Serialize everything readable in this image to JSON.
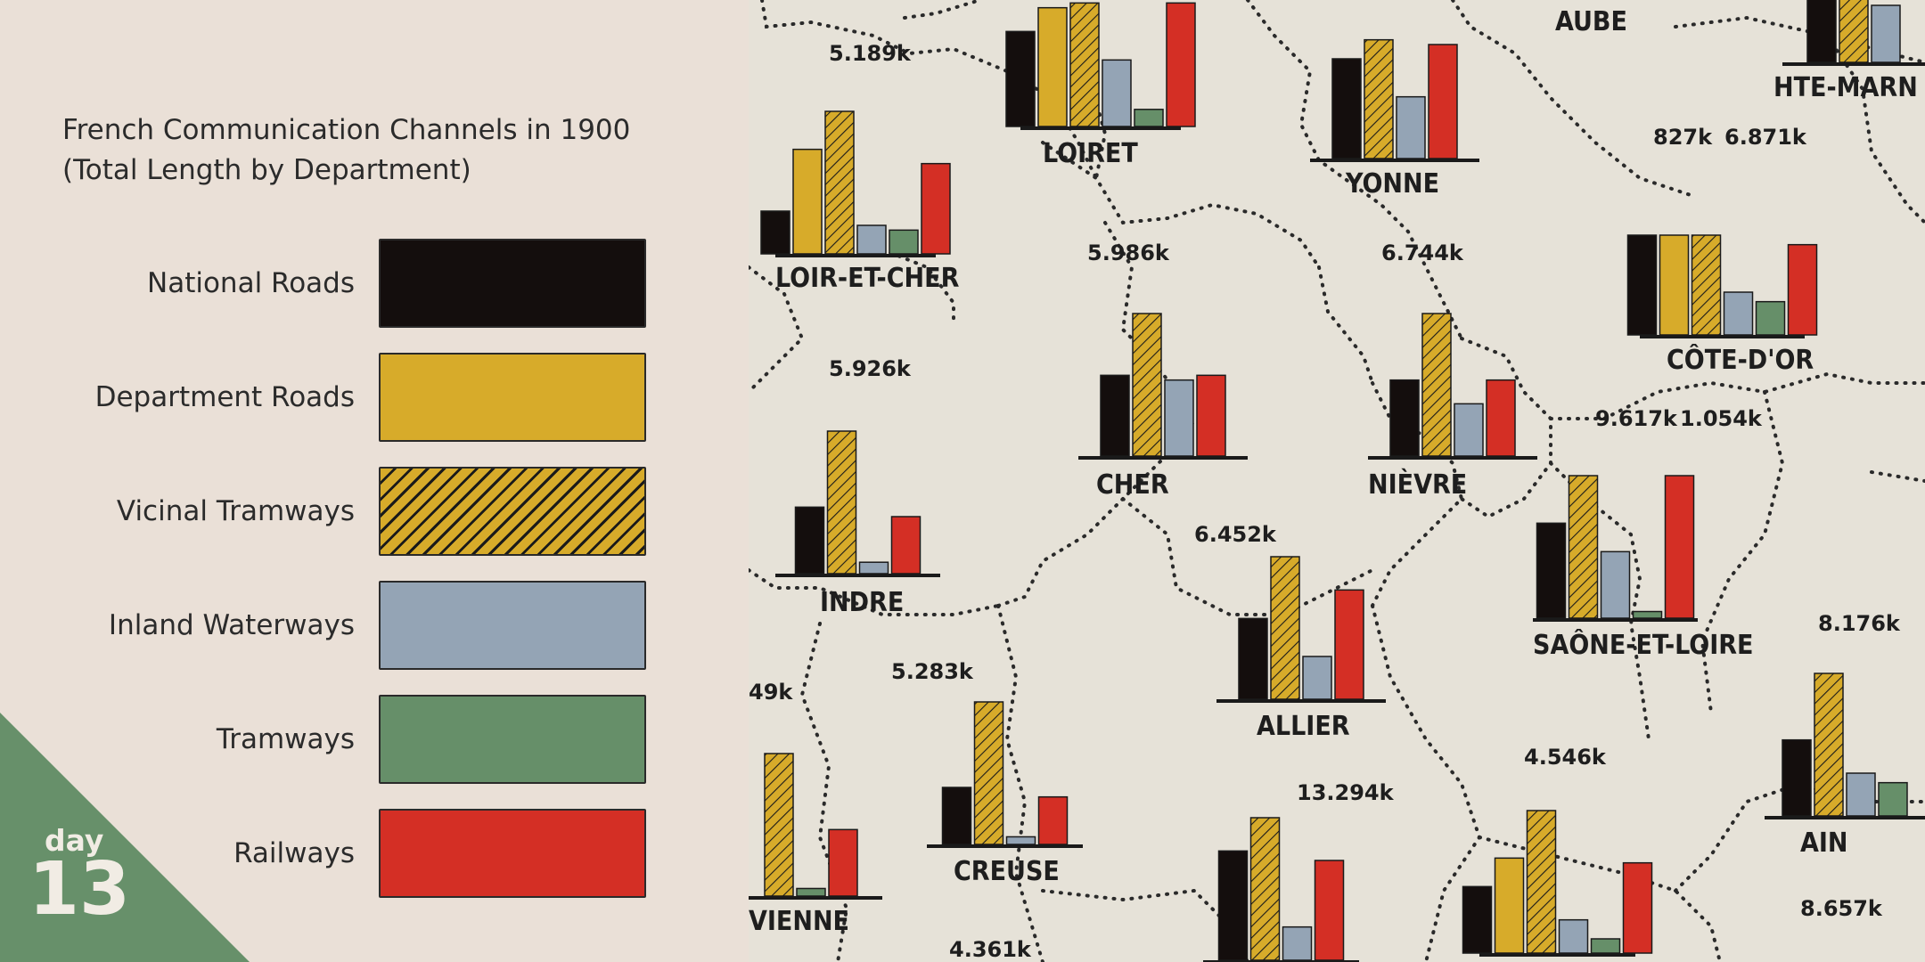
{
  "day_badge": {
    "word": "day",
    "number": "13"
  },
  "colors": {
    "national": "#140e0d",
    "department": "#d7ab2a",
    "vicinal": "#d7ab2a",
    "waterways": "#94a4b5",
    "tramways": "#668f69",
    "railways": "#d42f25",
    "map_paper": "#e6e2d8",
    "panel_bg": "#eae0d7",
    "badge_green": "#67906a"
  },
  "chart_data": {
    "type": "bar",
    "title": "French Communication Channels in 1900 (Total Length by Department)",
    "title_lines": [
      "French Communication Channels in 1900",
      "(Total Length by Department)"
    ],
    "legend": [
      {
        "label": "National Roads",
        "key": "national"
      },
      {
        "label": "Department Roads",
        "key": "department"
      },
      {
        "label": "Vicinal Tramways",
        "key": "vicinal",
        "pattern": "hatched"
      },
      {
        "label": "Inland Waterways",
        "key": "waterways"
      },
      {
        "label": "Tramways",
        "key": "tramways"
      },
      {
        "label": "Railways",
        "key": "railways"
      }
    ],
    "value_unit": "k",
    "max_bar_value": 1500,
    "departments": [
      {
        "name": "LOIR-ET-CHER",
        "label_overflow": "5.189",
        "values": {
          "national": 450,
          "department": 1100,
          "vicinal": 1500,
          "waterways": 300,
          "tramways": 250,
          "railways": 950
        }
      },
      {
        "name": "LOIRET",
        "values": {
          "national": 1000,
          "department": 1250,
          "vicinal": 1300,
          "waterways": 700,
          "tramways": 180,
          "railways": 1300
        }
      },
      {
        "name": "YONNE",
        "values": {
          "national": 1050,
          "vicinal": 1250,
          "waterways": 650,
          "railways": 1200
        }
      },
      {
        "name": "AUBE"
      },
      {
        "name": "HTE-MARN",
        "values": {
          "national": 900,
          "vicinal": 1200,
          "waterways": 600
        }
      },
      {
        "name": "CÔTE-D'OR",
        "label_overflow": "827",
        "label_overflow_2": "6.871",
        "values": {
          "national": 1050,
          "department": 1050,
          "vicinal": 1050,
          "waterways": 450,
          "tramways": 350,
          "railways": 950
        }
      },
      {
        "name": "CHER",
        "label_overflow": "5.986",
        "values": {
          "national": 850,
          "vicinal": 1500,
          "waterways": 800,
          "railways": 850
        }
      },
      {
        "name": "NIÈVRE",
        "label_overflow": "6.744",
        "values": {
          "national": 800,
          "vicinal": 1500,
          "waterways": 550,
          "railways": 800
        }
      },
      {
        "name": "INDRE",
        "label_overflow": "5.926",
        "values": {
          "national": 700,
          "vicinal": 1500,
          "waterways": 120,
          "railways": 600
        }
      },
      {
        "name": "SAÔNE-ET-LOIRE",
        "label_overflow": "9.617",
        "label_overflow_2": "1.054",
        "values": {
          "national": 1000,
          "vicinal": 1500,
          "waterways": 700,
          "tramways": 70,
          "railways": 1500
        }
      },
      {
        "name": "ALLIER",
        "label_overflow": "6.452",
        "values": {
          "national": 850,
          "vicinal": 1500,
          "waterways": 450,
          "railways": 1150
        }
      },
      {
        "name": "CREUSE",
        "label_overflow": "5.283",
        "values": {
          "national": 600,
          "vicinal": 1500,
          "waterways": 80,
          "railways": 500
        }
      },
      {
        "name": "AIN",
        "label_overflow": "8.176",
        "values": {
          "national": 800,
          "vicinal": 1500,
          "waterways": 450,
          "tramways": 350
        }
      },
      {
        "name": "VIENNE",
        "label_overflow": "49",
        "values": {
          "vicinal": 1500,
          "tramways": 80,
          "railways": 700
        }
      },
      {
        "name": "",
        "label_overflow": "13.294",
        "values": {
          "national": 1150,
          "vicinal": 1500,
          "waterways": 350,
          "railways": 1050
        }
      },
      {
        "name": "",
        "label_overflow": "4.546",
        "values": {
          "national": 700,
          "department": 1000,
          "vicinal": 1500,
          "waterways": 350,
          "tramways": 150,
          "railways": 950
        }
      },
      {
        "name": "",
        "label_overflow": "4.361"
      },
      {
        "name": "",
        "label_overflow": "8.657"
      }
    ]
  }
}
